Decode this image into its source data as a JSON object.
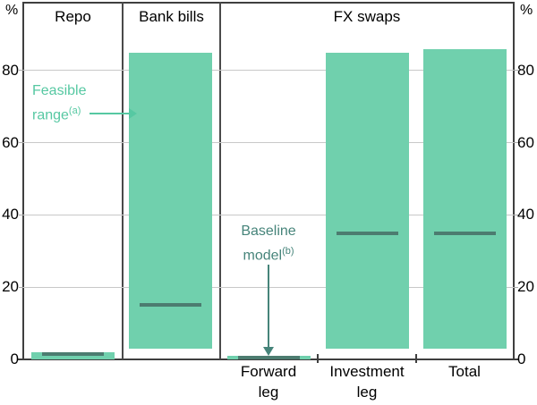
{
  "chart_data": {
    "type": "bar",
    "title": "",
    "unit": "%",
    "ylim": [
      0,
      99
    ],
    "yticks": [
      0,
      20,
      40,
      60,
      80
    ],
    "grid": true,
    "legend_position": "none",
    "panels": [
      {
        "label": "Repo"
      },
      {
        "label": "Bank bills"
      },
      {
        "label": "FX swaps"
      }
    ],
    "bars": [
      {
        "category": "Repo",
        "panel": "Repo",
        "label_line1": "",
        "label_line2": "",
        "range_low": 0,
        "range_high": 2,
        "baseline": 1.5
      },
      {
        "category": "Bank bills",
        "panel": "Bank bills",
        "label_line1": "",
        "label_line2": "",
        "range_low": 3,
        "range_high": 85,
        "baseline": 15
      },
      {
        "category": "Forward leg",
        "panel": "FX swaps",
        "label_line1": "Forward",
        "label_line2": "leg",
        "range_low": 0,
        "range_high": 1,
        "baseline": 0.5
      },
      {
        "category": "Investment leg",
        "panel": "FX swaps",
        "label_line1": "Investment",
        "label_line2": "leg",
        "range_low": 3,
        "range_high": 85,
        "baseline": 35
      },
      {
        "category": "Total",
        "panel": "FX swaps",
        "label_line1": "Total",
        "label_line2": "",
        "range_low": 3,
        "range_high": 86,
        "baseline": 35
      }
    ],
    "annotations": {
      "feasible": {
        "line1": "Feasible",
        "line2": "range",
        "sup": "(a)"
      },
      "baseline": {
        "line1": "Baseline",
        "line2": "model",
        "sup": "(b)"
      }
    },
    "colors": {
      "bar_fill": "#70D0AD",
      "baseline_dash": "#4C7C70",
      "feasible_annotation": "#56C8A2",
      "baseline_annotation": "#46847A",
      "gridline": "#C8C8C8",
      "frame": "#3F3F3F",
      "text": "#000000"
    }
  }
}
